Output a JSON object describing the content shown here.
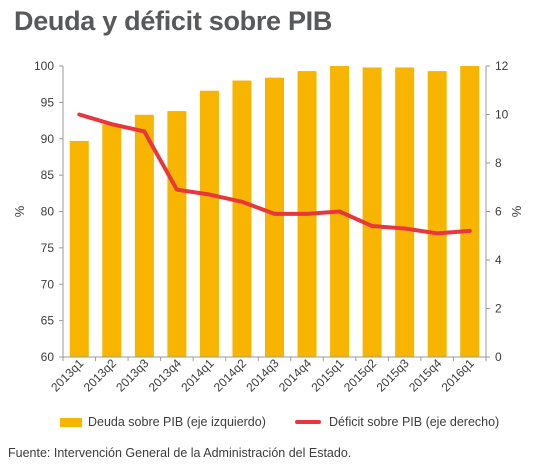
{
  "title": "Deuda y déficit sobre PIB",
  "source": "Fuente: Intervención General de la Administración del Estado.",
  "colors": {
    "bar": "#f7b500",
    "line": "#e8373c",
    "axis": "#9a9a9a"
  },
  "chart_data": {
    "type": "bar",
    "categories": [
      "2013q1",
      "2013q2",
      "2013q3",
      "2013q4",
      "2014q1",
      "2014q2",
      "2014q3",
      "2014q4",
      "2015q1",
      "2015q2",
      "2015q3",
      "2015q4",
      "2016q1"
    ],
    "ylabel_left": "%",
    "ylabel_right": "%",
    "ylim_left": [
      60,
      100
    ],
    "ylim_right": [
      0,
      12
    ],
    "yticks_left": [
      60,
      65,
      70,
      75,
      80,
      85,
      90,
      95,
      100
    ],
    "yticks_right": [
      0,
      2,
      4,
      6,
      8,
      10,
      12
    ],
    "grid": false,
    "legend_position": "bottom",
    "series": [
      {
        "name": "Deuda sobre PIB (eje izquierdo)",
        "type": "bar",
        "axis": "left",
        "values": [
          89.7,
          92.0,
          93.3,
          93.8,
          96.6,
          98.0,
          98.4,
          99.3,
          100.2,
          99.8,
          99.8,
          99.3,
          100.2
        ]
      },
      {
        "name": "Déficit sobre PIB (eje derecho)",
        "type": "line",
        "axis": "right",
        "values": [
          10.0,
          9.6,
          9.3,
          6.9,
          6.7,
          6.4,
          5.9,
          5.9,
          6.0,
          5.4,
          5.3,
          5.1,
          5.2
        ]
      }
    ]
  }
}
